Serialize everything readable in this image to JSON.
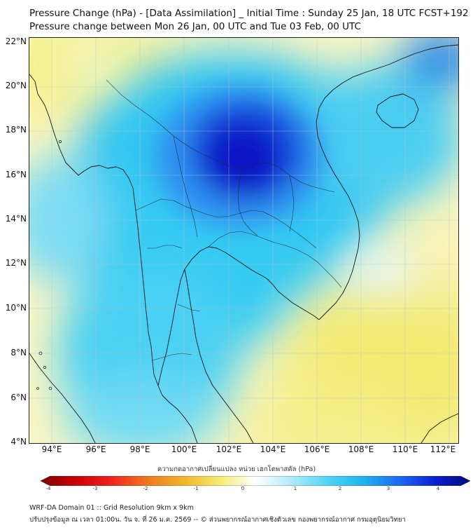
{
  "header": {
    "title_line1": "Pressure Change (hPa) - [Data Assimilation] _ Initial Time : Sunday 25 Jan, 18 UTC FCST+192",
    "title_line2": "Pressure change between Mon 26 Jan, 00 UTC and Tue 03 Feb, 00 UTC"
  },
  "map": {
    "lat_labels": [
      "22°N",
      "20°N",
      "18°N",
      "16°N",
      "14°N",
      "12°N",
      "10°N",
      "8°N",
      "6°N",
      "4°N"
    ],
    "lon_labels": [
      "94°E",
      "96°E",
      "98°E",
      "100°E",
      "102°E",
      "104°E",
      "106°E",
      "108°E",
      "110°E",
      "112°E"
    ],
    "colors": {
      "strong_fall": "#0a14c8",
      "fall": "#1e6cf0",
      "light_fall": "#20c8f0",
      "neutral": "#e6f8ff",
      "rise": "#f5f09a",
      "strong_rise": "#f0e040",
      "coast": "#1a1a1a"
    }
  },
  "colorbar": {
    "title": "ความกดอากาศเปลี่ยนแปลง หน่วย เฮกโตพาสคัล (hPa)",
    "ticks": [
      "-4",
      "-3",
      "-2",
      "-1",
      "0",
      "1",
      "2",
      "3",
      "4"
    ],
    "range": [
      -4,
      4
    ]
  },
  "footer": {
    "line1": "WRF-DA Domain 01 :: Grid Resolution 9km x 9km",
    "line2": "ปรับปรุงข้อมูล ณ เวลา 01:00น. วัน จ. ที่ 26 ม.ค. 2569 -- © ส่วนพยากรณ์อากาศเชิงตัวเลข กองพยากรณ์อากาศ กรมอุตุนิยมวิทยา"
  }
}
